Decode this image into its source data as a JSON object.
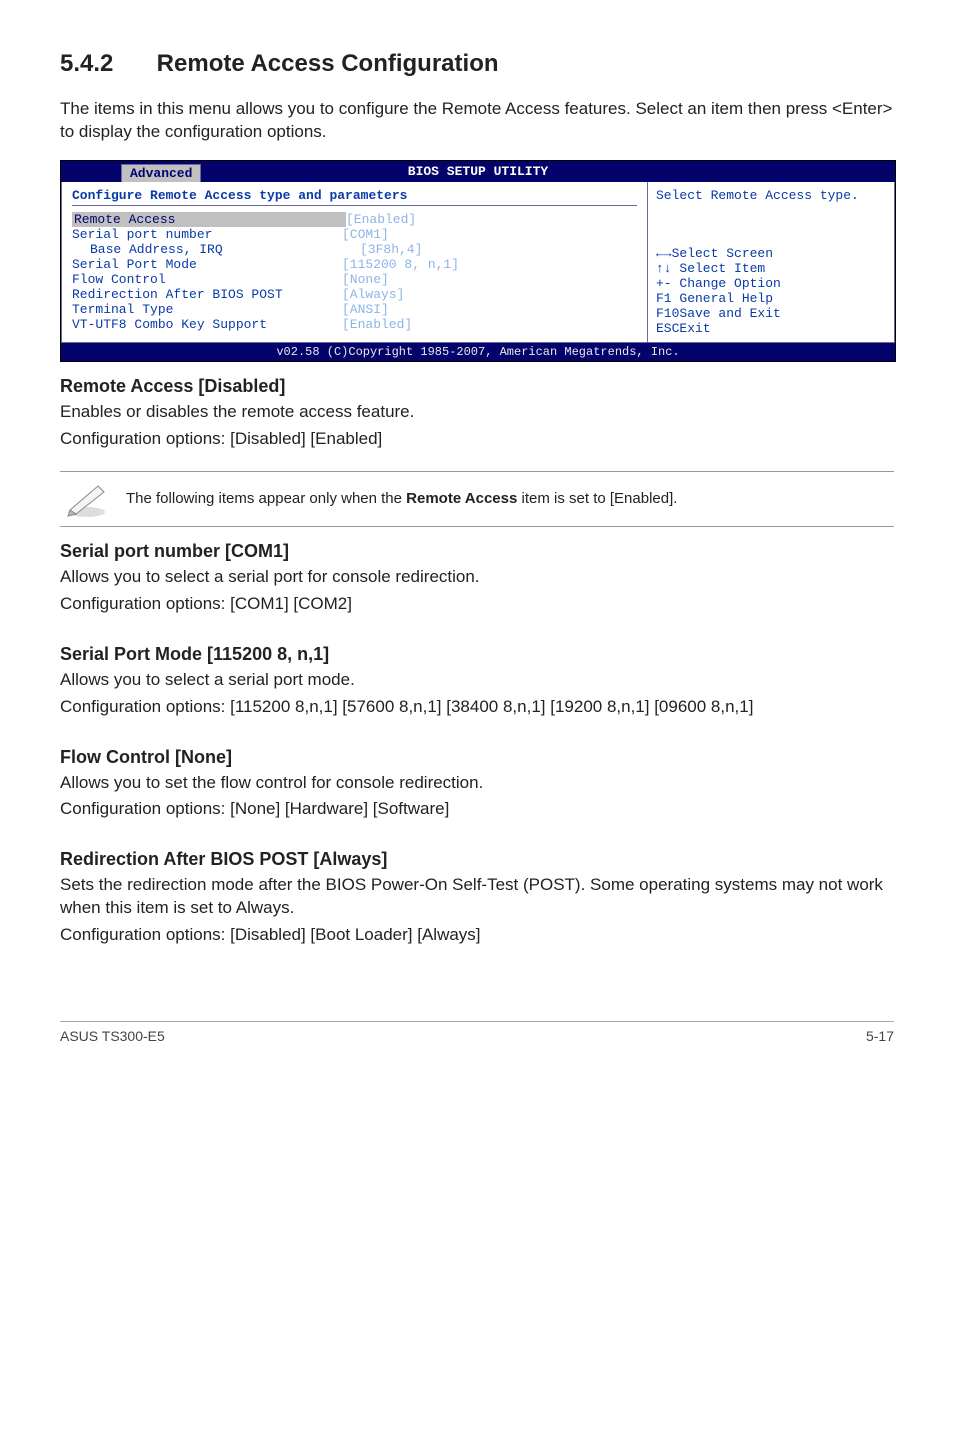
{
  "section": {
    "number": "5.4.2",
    "title": "Remote Access Configuration"
  },
  "intro": "The items in this menu allows you to configure the Remote Access features. Select an item then press <Enter> to display the configuration options.",
  "bios": {
    "title": "BIOS SETUP UTILITY",
    "tab": "Advanced",
    "header": "Configure Remote Access type and parameters",
    "rows": [
      {
        "label": "Remote Access",
        "value": "[Enabled]",
        "highlight": true
      },
      {
        "label": "",
        "value": ""
      },
      {
        "label": "Serial port number",
        "value": "[COM1]"
      },
      {
        "label": "Base Address, IRQ",
        "value": "[3F8h,4]",
        "sub": true
      },
      {
        "label": "Serial Port Mode",
        "value": "[115200 8, n,1]"
      },
      {
        "label": "Flow Control",
        "value": "[None]"
      },
      {
        "label": "Redirection After BIOS POST",
        "value": "[Always]"
      },
      {
        "label": "Terminal Type",
        "value": "[ANSI]"
      },
      {
        "label": "VT-UTF8 Combo Key Support",
        "value": "[Enabled]"
      }
    ],
    "help_top": "Select Remote Access type.",
    "legend": [
      "←→Select Screen",
      "↑↓ Select Item",
      "+- Change Option",
      "F1 General Help",
      "F10Save and Exit",
      "ESCExit"
    ],
    "status": "v02.58 (C)Copyright 1985-2007, American Megatrends, Inc."
  },
  "blocks": [
    {
      "heading": "Remote Access [Disabled]",
      "paras": [
        "Enables or disables the remote access feature.",
        "Configuration options: [Disabled] [Enabled]"
      ]
    },
    {
      "note": true,
      "text_pre": "The following items appear only when the ",
      "text_bold": "Remote Access",
      "text_post": " item is set to [Enabled]."
    },
    {
      "heading": "Serial port number [COM1]",
      "paras": [
        "Allows you to select a serial port for console redirection.",
        "Configuration options: [COM1] [COM2]"
      ]
    },
    {
      "heading": "Serial Port Mode [115200 8, n,1]",
      "paras": [
        "Allows you to select a serial port mode.",
        "Configuration options: [115200 8,n,1] [57600 8,n,1] [38400 8,n,1] [19200 8,n,1] [09600 8,n,1]"
      ]
    },
    {
      "heading": "Flow Control [None]",
      "paras": [
        "Allows you to set the flow control for console redirection.",
        "Configuration options: [None] [Hardware] [Software]"
      ]
    },
    {
      "heading": "Redirection After BIOS POST [Always]",
      "paras": [
        "Sets the redirection mode after the BIOS Power-On Self-Test (POST). Some operating systems may not work when this item is set to Always.",
        "Configuration options: [Disabled] [Boot Loader] [Always]"
      ]
    }
  ],
  "footer": {
    "left": "ASUS TS300-E5",
    "right": "5-17"
  }
}
